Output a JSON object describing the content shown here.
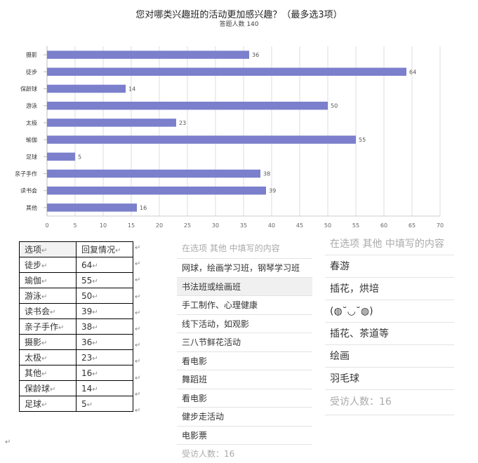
{
  "title": "您对哪类兴趣班的活动更加感兴趣？（最多选3项）",
  "subtitle": "答题人数 140",
  "chart_data": {
    "type": "bar",
    "orientation": "horizontal",
    "categories": [
      "摄影",
      "徒步",
      "保龄球",
      "游泳",
      "太极",
      "瑜伽",
      "足球",
      "亲子手作",
      "读书会",
      "其他"
    ],
    "values": [
      36,
      64,
      14,
      50,
      23,
      55,
      5,
      38,
      39,
      16
    ],
    "xticks": [
      0,
      5,
      10,
      15,
      20,
      25,
      30,
      35,
      40,
      45,
      50,
      55,
      60,
      65,
      70
    ],
    "xlim": [
      0,
      70
    ],
    "grid": true,
    "bar_color": "#7b7fcc"
  },
  "table": {
    "header": [
      "选项",
      "回复情况"
    ],
    "rows": [
      [
        "徒步",
        "64"
      ],
      [
        "瑜伽",
        "55"
      ],
      [
        "游泳",
        "50"
      ],
      [
        "读书会",
        "39"
      ],
      [
        "亲子手作",
        "38"
      ],
      [
        "摄影",
        "36"
      ],
      [
        "太极",
        "23"
      ],
      [
        "其他",
        "16"
      ],
      [
        "保龄球",
        "14"
      ],
      [
        "足球",
        "5"
      ]
    ],
    "cell_mark": "↵"
  },
  "other_list_1": {
    "header": "在选项 其他 中填写的内容",
    "items": [
      "网球，绘画学习班，钢琴学习班",
      "书法班或绘画班",
      "手工制作、心理健康",
      "线下活动，如观影",
      "三八节鲜花活动",
      "看电影",
      "舞蹈班",
      "看电影",
      "健步走活动",
      "电影票"
    ],
    "footer": "受访人数：16"
  },
  "other_list_2": {
    "header": "在选项 其他 中填写的内容",
    "items": [
      "春游",
      "插花，烘培",
      "(◍˘◡˘◍)",
      "插花、茶道等",
      "绘画",
      "羽毛球"
    ],
    "footer": "受访人数：16"
  }
}
